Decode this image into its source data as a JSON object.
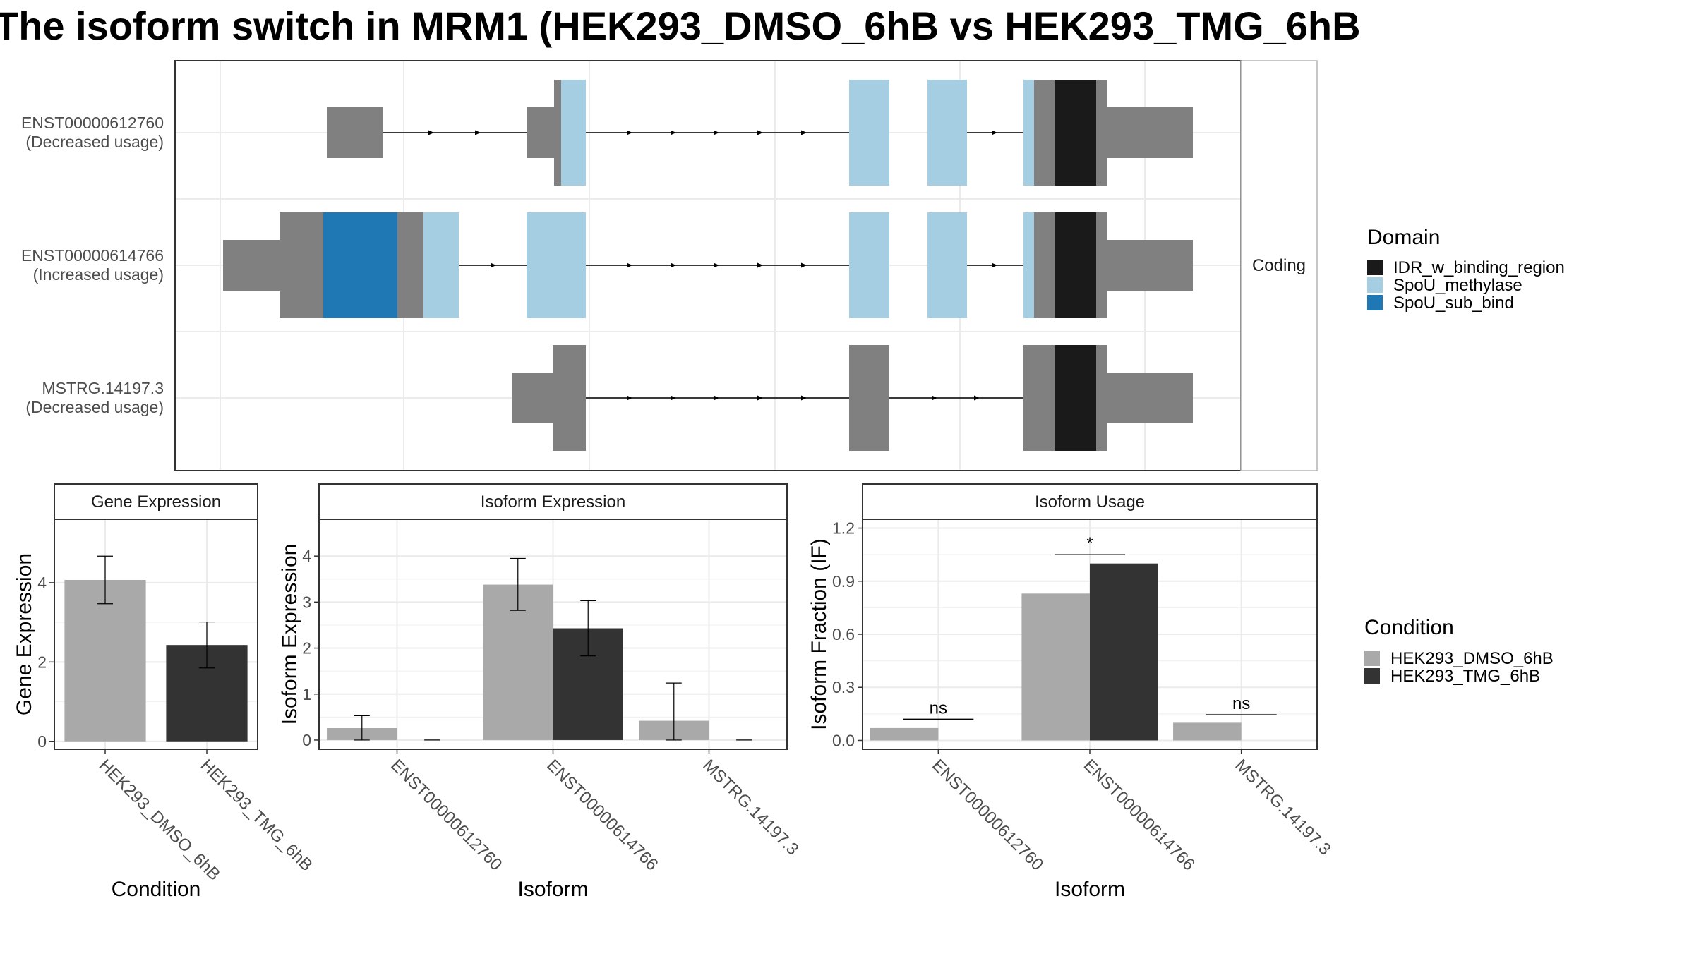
{
  "title": "The isoform switch in MRM1 (HEK293_DMSO_6hB vs HEK293_TMG_6hB",
  "colors": {
    "utr_gray": "#808080",
    "domain_IDR_w_binding_region": "#1a1a1a",
    "domain_SpoU_methylase": "#a6cee3",
    "domain_SpoU_sub_bind": "#1f78b4",
    "cond_DMSO": "#a9a9a9",
    "cond_TMG": "#333333",
    "grid": "#ebebeb",
    "panel_border": "#333333",
    "strip_border": "#b3b3b3"
  },
  "structure": {
    "strip_label": "Coding",
    "transcripts": [
      {
        "id": "ENST00000612760",
        "note": "(Decreased usage)"
      },
      {
        "id": "ENST00000614766",
        "note": "(Increased usage)"
      },
      {
        "id": "MSTRG.14197.3",
        "note": "(Decreased usage)"
      }
    ],
    "domain_legend": {
      "title": "Domain",
      "items": [
        {
          "label": "IDR_w_binding_region",
          "color": "#1a1a1a"
        },
        {
          "label": "SpoU_methylase",
          "color": "#a6cee3"
        },
        {
          "label": "SpoU_sub_bind",
          "color": "#1f78b4"
        }
      ]
    }
  },
  "chart_data": [
    {
      "type": "bar",
      "title": "Gene Expression",
      "xlabel": "Condition",
      "ylabel": "Gene Expression",
      "categories": [
        "HEK293_DMSO_6hB",
        "HEK293_TMG_6hB"
      ],
      "values": [
        4.07,
        2.43
      ],
      "error_low": [
        3.47,
        1.85
      ],
      "error_high": [
        4.67,
        3.01
      ],
      "ylim": [
        -0.2,
        5.6
      ],
      "yticks": [
        0,
        2,
        4
      ],
      "grid": true
    },
    {
      "type": "bar",
      "title": "Isoform Expression",
      "xlabel": "Isoform",
      "ylabel": "Isoform Expression",
      "categories": [
        "ENST00000612760",
        "ENST00000614766",
        "MSTRG.14197.3"
      ],
      "series": [
        {
          "name": "HEK293_DMSO_6hB",
          "values": [
            0.26,
            3.38,
            0.42
          ],
          "error_low": [
            0.0,
            2.82,
            0.0
          ],
          "error_high": [
            0.53,
            3.95,
            1.24
          ]
        },
        {
          "name": "HEK293_TMG_6hB",
          "values": [
            0.0,
            2.43,
            0.0
          ],
          "error_low": [
            0.0,
            1.83,
            0.0
          ],
          "error_high": [
            0.0,
            3.03,
            0.0
          ]
        }
      ],
      "ylim": [
        -0.2,
        4.8
      ],
      "yticks": [
        0,
        1,
        2,
        3,
        4
      ],
      "grid": true
    },
    {
      "type": "bar",
      "title": "Isoform Usage",
      "xlabel": "Isoform",
      "ylabel": "Isoform Fraction (IF)",
      "categories": [
        "ENST00000612760",
        "ENST00000614766",
        "MSTRG.14197.3"
      ],
      "series": [
        {
          "name": "HEK293_DMSO_6hB",
          "values": [
            0.07,
            0.83,
            0.1
          ]
        },
        {
          "name": "HEK293_TMG_6hB",
          "values": [
            0.0,
            1.0,
            0.0
          ]
        }
      ],
      "significance": [
        {
          "category": "ENST00000612760",
          "label": "ns",
          "y": 0.12
        },
        {
          "category": "ENST00000614766",
          "label": "*",
          "y": 1.05
        },
        {
          "category": "MSTRG.14197.3",
          "label": "ns",
          "y": 0.145
        }
      ],
      "ylim": [
        -0.05,
        1.25
      ],
      "yticks": [
        0.0,
        0.3,
        0.6,
        0.9,
        1.2
      ],
      "ytick_labels": [
        "0.0",
        "0.3",
        "0.6",
        "0.9",
        "1.2"
      ],
      "grid": true
    }
  ],
  "condition_legend": {
    "title": "Condition",
    "items": [
      {
        "label": "HEK293_DMSO_6hB",
        "color": "#a9a9a9"
      },
      {
        "label": "HEK293_TMG_6hB",
        "color": "#333333"
      }
    ]
  }
}
